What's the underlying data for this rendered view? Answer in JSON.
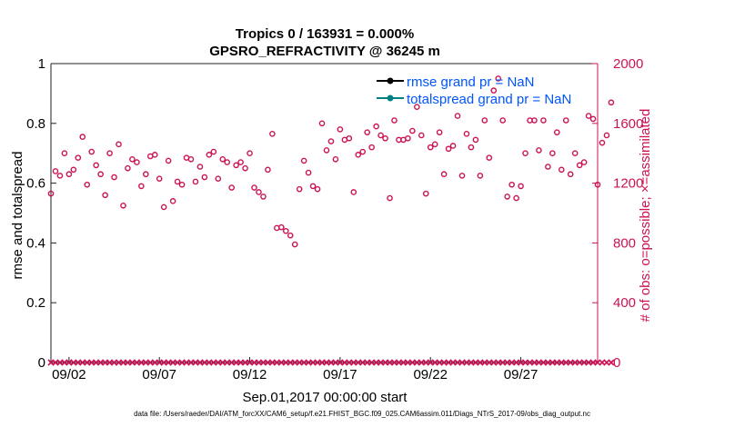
{
  "chart_data": {
    "type": "scatter",
    "title": "Tropics 0 / 163931 = 0.000%",
    "subtitle": "GPSRO_REFRACTIVITY @ 36245 m",
    "xlabel": "Sep.01,2017 00:00:00 start",
    "ylabel_left": "rmse and totalspread",
    "ylabel_right": "# of obs: o=possible; ×=assimilated",
    "left_ylim": [
      0,
      1
    ],
    "left_ticks": [
      "0",
      "0.2",
      "0.4",
      "0.6",
      "0.8",
      "1"
    ],
    "right_ylim": [
      0,
      2000
    ],
    "right_ticks": [
      "0",
      "400",
      "800",
      "1200",
      "1600",
      "2000"
    ],
    "x_range_days": [
      0,
      30.25
    ],
    "x_ticks": [
      {
        "day": 1,
        "label": "09/02"
      },
      {
        "day": 6,
        "label": "09/07"
      },
      {
        "day": 11,
        "label": "09/12"
      },
      {
        "day": 16,
        "label": "09/17"
      },
      {
        "day": 21,
        "label": "09/22"
      },
      {
        "day": 26,
        "label": "09/27"
      }
    ],
    "legend": [
      {
        "name": "rmse grand pr = NaN",
        "color": "#000000"
      },
      {
        "name": "totalspread grand pr = NaN",
        "color": "#008080"
      }
    ],
    "possible_color": "#cc1155",
    "assimilated_color": "#cc1155",
    "possible_obs": [
      1130,
      1280,
      1250,
      1400,
      1260,
      1290,
      1370,
      1510,
      1190,
      1410,
      1320,
      1260,
      1120,
      1400,
      1240,
      1460,
      1050,
      1300,
      1360,
      1340,
      1180,
      1260,
      1380,
      1390,
      1230,
      1040,
      1350,
      1080,
      1210,
      1190,
      1370,
      1360,
      1210,
      1310,
      1240,
      1390,
      1410,
      1230,
      1360,
      1340,
      1170,
      1320,
      1340,
      1300,
      1400,
      1170,
      1140,
      1110,
      1290,
      1530,
      900,
      905,
      880,
      850,
      790,
      1160,
      1350,
      1270,
      1180,
      1160,
      1600,
      1420,
      1480,
      1360,
      1560,
      1490,
      1500,
      1140,
      1390,
      1410,
      1540,
      1440,
      1580,
      1520,
      1500,
      1100,
      1620,
      1490,
      1490,
      1500,
      1550,
      1710,
      1520,
      1130,
      1440,
      1460,
      1540,
      1260,
      1430,
      1450,
      1650,
      1250,
      1530,
      1440,
      1490,
      1250,
      1620,
      1370,
      1820,
      1900,
      1620,
      1110,
      1190,
      1100,
      1180,
      1400,
      1620,
      1620,
      1420,
      1620,
      1310,
      1400,
      1540,
      1290,
      1620,
      1260,
      1400,
      1320,
      1340,
      1650,
      1630,
      1190,
      1470,
      1520,
      1740
    ],
    "assimilated_value": 0,
    "footer": "data file: /Users/raeder/DAI/ATM_forcXX/CAM6_setup/f.e21.FHIST_BGC.f09_025.CAM6assim.011/Diags_NTrS_2017-09/obs_diag_output.nc"
  }
}
